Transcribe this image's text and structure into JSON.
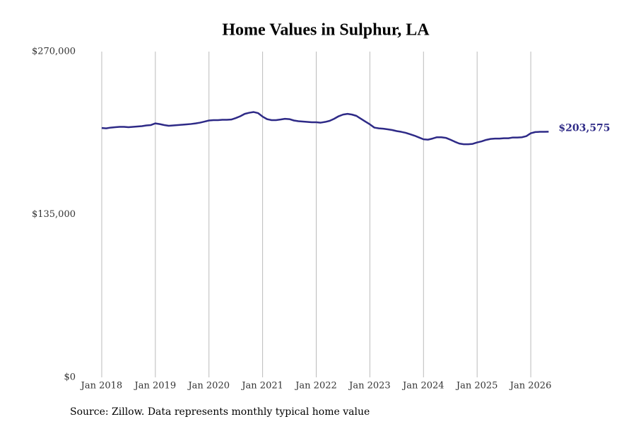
{
  "chart_data": {
    "type": "line",
    "title": "Home Values in Sulphur, LA",
    "source": "Source: Zillow. Data represents monthly typical home value",
    "x": [
      "2018-01",
      "2018-02",
      "2018-03",
      "2018-04",
      "2018-05",
      "2018-06",
      "2018-07",
      "2018-08",
      "2018-09",
      "2018-10",
      "2018-11",
      "2018-12",
      "2019-01",
      "2019-02",
      "2019-03",
      "2019-04",
      "2019-05",
      "2019-06",
      "2019-07",
      "2019-08",
      "2019-09",
      "2019-10",
      "2019-11",
      "2019-12",
      "2020-01",
      "2020-02",
      "2020-03",
      "2020-04",
      "2020-05",
      "2020-06",
      "2020-07",
      "2020-08",
      "2020-09",
      "2020-10",
      "2020-11",
      "2020-12",
      "2021-01",
      "2021-02",
      "2021-03",
      "2021-04",
      "2021-05",
      "2021-06",
      "2021-07",
      "2021-08",
      "2021-09",
      "2021-10",
      "2021-11",
      "2021-12",
      "2022-01",
      "2022-02",
      "2022-03",
      "2022-04",
      "2022-05",
      "2022-06",
      "2022-07",
      "2022-08",
      "2022-09",
      "2022-10",
      "2022-11",
      "2022-12",
      "2023-01",
      "2023-02",
      "2023-03",
      "2023-04",
      "2023-05",
      "2023-06",
      "2023-07",
      "2023-08",
      "2023-09",
      "2023-10",
      "2023-11",
      "2023-12",
      "2024-01",
      "2024-02",
      "2024-03",
      "2024-04",
      "2024-05",
      "2024-06",
      "2024-07",
      "2024-08",
      "2024-09",
      "2024-10",
      "2024-11",
      "2024-12",
      "2025-01",
      "2025-02",
      "2025-03",
      "2025-04",
      "2025-05",
      "2025-06",
      "2025-07",
      "2025-08",
      "2025-09",
      "2025-10",
      "2025-11",
      "2025-12",
      "2026-01",
      "2026-02",
      "2026-03",
      "2026-04",
      "2026-05"
    ],
    "series": [
      {
        "name": "Typical home value",
        "color": "#2e2a87",
        "values": [
          206700,
          206400,
          207000,
          207300,
          207600,
          207600,
          207300,
          207600,
          207900,
          208200,
          208800,
          209100,
          210500,
          209900,
          209100,
          208500,
          208800,
          209100,
          209400,
          209700,
          210000,
          210500,
          211100,
          212000,
          212900,
          213200,
          213200,
          213500,
          213500,
          213700,
          214900,
          216400,
          218400,
          219300,
          219900,
          219000,
          216100,
          214000,
          213200,
          213200,
          213700,
          214300,
          214000,
          212900,
          212300,
          212000,
          211700,
          211400,
          211400,
          211100,
          211700,
          212600,
          214300,
          216400,
          217800,
          218400,
          217800,
          216700,
          214300,
          212000,
          209700,
          207000,
          206400,
          206100,
          205600,
          205000,
          204100,
          203500,
          202700,
          201500,
          200300,
          198800,
          197300,
          197000,
          197900,
          199000,
          199000,
          198500,
          197000,
          195300,
          193800,
          193200,
          193200,
          193500,
          194700,
          195600,
          196800,
          197600,
          197900,
          197900,
          198200,
          198200,
          198800,
          198800,
          199000,
          199900,
          202300,
          203300,
          203500,
          203500,
          203575
        ],
        "value_labels": [
          null,
          null,
          null,
          null,
          null,
          null,
          null,
          null,
          null,
          null,
          null,
          null,
          null,
          null,
          null,
          null,
          null,
          null,
          null,
          null,
          null,
          null,
          null,
          null,
          null,
          null,
          null,
          null,
          null,
          null,
          null,
          null,
          null,
          null,
          null,
          null,
          null,
          null,
          null,
          null,
          null,
          null,
          null,
          null,
          null,
          null,
          null,
          null,
          null,
          null,
          null,
          null,
          null,
          null,
          null,
          null,
          null,
          null,
          null,
          null,
          null,
          null,
          null,
          null,
          null,
          null,
          null,
          null,
          null,
          null,
          null,
          null,
          null,
          null,
          null,
          null,
          null,
          null,
          null,
          null,
          null,
          null,
          null,
          null,
          null,
          null,
          null,
          null,
          null,
          null,
          null,
          null,
          null,
          null,
          null,
          null,
          null,
          null,
          null,
          null,
          "$203,575"
        ]
      }
    ],
    "xlim": [
      "2017-07",
      "2026-10"
    ],
    "xticks": [
      {
        "value": "2018-01",
        "label": "Jan 2018"
      },
      {
        "value": "2019-01",
        "label": "Jan 2019"
      },
      {
        "value": "2020-01",
        "label": "Jan 2020"
      },
      {
        "value": "2021-01",
        "label": "Jan 2021"
      },
      {
        "value": "2022-01",
        "label": "Jan 2022"
      },
      {
        "value": "2023-01",
        "label": "Jan 2023"
      },
      {
        "value": "2024-01",
        "label": "Jan 2024"
      },
      {
        "value": "2025-01",
        "label": "Jan 2025"
      },
      {
        "value": "2026-01",
        "label": "Jan 2026"
      }
    ],
    "ylim": [
      0,
      270000
    ],
    "yticks": [
      {
        "value": 0,
        "label": "$0"
      },
      {
        "value": 135000,
        "label": "$135,000"
      },
      {
        "value": 270000,
        "label": "$270,000"
      }
    ],
    "grid": "x"
  }
}
